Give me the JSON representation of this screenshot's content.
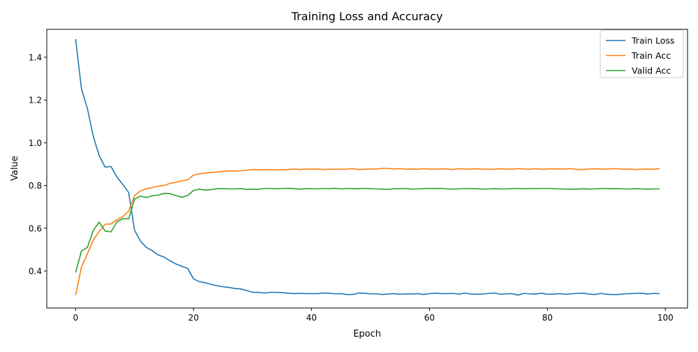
{
  "chart_data": {
    "type": "line",
    "title": "Training Loss and Accuracy",
    "xlabel": "Epoch",
    "ylabel": "Value",
    "xlim": [
      -5,
      104
    ],
    "ylim": [
      0.25,
      1.53
    ],
    "xticks": [
      0,
      20,
      40,
      60,
      80,
      100
    ],
    "xtick_labels": [
      "0",
      "20",
      "40",
      "60",
      "80",
      "100"
    ],
    "yticks": [
      0.4,
      0.6,
      0.8,
      1.0,
      1.2,
      1.4
    ],
    "ytick_labels": [
      "0.4",
      "0.6",
      "0.8",
      "1.0",
      "1.2",
      "1.4"
    ],
    "grid": false,
    "legend_position": "top-right",
    "series": [
      {
        "name": "Train Loss",
        "color": "#1f77b4",
        "values": [
          1.485,
          1.252,
          1.16,
          1.03,
          0.94,
          0.886,
          0.889,
          0.84,
          0.805,
          0.767,
          0.59,
          0.54,
          0.51,
          0.495,
          0.475,
          0.465,
          0.448,
          0.433,
          0.422,
          0.412,
          0.363,
          0.35,
          0.345,
          0.337,
          0.331,
          0.326,
          0.323,
          0.318,
          0.316,
          0.309,
          0.3,
          0.3,
          0.297,
          0.3,
          0.3,
          0.299,
          0.296,
          0.294,
          0.295,
          0.294,
          0.294,
          0.294,
          0.297,
          0.296,
          0.293,
          0.294,
          0.29,
          0.29,
          0.297,
          0.296,
          0.293,
          0.293,
          0.29,
          0.292,
          0.294,
          0.291,
          0.293,
          0.292,
          0.294,
          0.29,
          0.294,
          0.296,
          0.294,
          0.294,
          0.295,
          0.291,
          0.297,
          0.292,
          0.291,
          0.292,
          0.295,
          0.297,
          0.291,
          0.293,
          0.294,
          0.287,
          0.295,
          0.293,
          0.292,
          0.296,
          0.291,
          0.292,
          0.294,
          0.291,
          0.293,
          0.295,
          0.296,
          0.292,
          0.29,
          0.295,
          0.291,
          0.29,
          0.29,
          0.293,
          0.294,
          0.295,
          0.296,
          0.292,
          0.295,
          0.294
        ]
      },
      {
        "name": "Train Acc",
        "color": "#ff7f0e",
        "values": [
          0.287,
          0.419,
          0.48,
          0.545,
          0.585,
          0.619,
          0.62,
          0.64,
          0.655,
          0.68,
          0.753,
          0.775,
          0.785,
          0.79,
          0.797,
          0.8,
          0.81,
          0.815,
          0.822,
          0.826,
          0.849,
          0.855,
          0.858,
          0.861,
          0.863,
          0.866,
          0.868,
          0.868,
          0.869,
          0.871,
          0.875,
          0.874,
          0.874,
          0.875,
          0.873,
          0.874,
          0.875,
          0.877,
          0.875,
          0.877,
          0.876,
          0.877,
          0.875,
          0.876,
          0.876,
          0.876,
          0.877,
          0.879,
          0.875,
          0.876,
          0.877,
          0.877,
          0.88,
          0.88,
          0.877,
          0.879,
          0.876,
          0.877,
          0.876,
          0.878,
          0.877,
          0.876,
          0.878,
          0.877,
          0.875,
          0.879,
          0.876,
          0.877,
          0.878,
          0.877,
          0.876,
          0.876,
          0.878,
          0.877,
          0.876,
          0.879,
          0.877,
          0.876,
          0.878,
          0.876,
          0.877,
          0.878,
          0.877,
          0.877,
          0.879,
          0.875,
          0.875,
          0.877,
          0.878,
          0.877,
          0.876,
          0.879,
          0.878,
          0.876,
          0.877,
          0.875,
          0.876,
          0.877,
          0.876,
          0.879
        ]
      },
      {
        "name": "Valid Acc",
        "color": "#2ca02c",
        "values": [
          0.393,
          0.494,
          0.51,
          0.59,
          0.629,
          0.587,
          0.583,
          0.63,
          0.645,
          0.644,
          0.737,
          0.75,
          0.744,
          0.752,
          0.755,
          0.763,
          0.762,
          0.753,
          0.745,
          0.753,
          0.777,
          0.783,
          0.778,
          0.781,
          0.785,
          0.785,
          0.784,
          0.784,
          0.785,
          0.782,
          0.783,
          0.782,
          0.786,
          0.786,
          0.785,
          0.786,
          0.787,
          0.785,
          0.783,
          0.785,
          0.785,
          0.784,
          0.786,
          0.785,
          0.787,
          0.784,
          0.786,
          0.785,
          0.785,
          0.786,
          0.785,
          0.784,
          0.783,
          0.782,
          0.785,
          0.785,
          0.786,
          0.783,
          0.784,
          0.785,
          0.786,
          0.785,
          0.787,
          0.784,
          0.783,
          0.784,
          0.786,
          0.785,
          0.785,
          0.783,
          0.784,
          0.785,
          0.784,
          0.784,
          0.785,
          0.786,
          0.785,
          0.786,
          0.785,
          0.786,
          0.786,
          0.785,
          0.784,
          0.783,
          0.783,
          0.783,
          0.785,
          0.783,
          0.784,
          0.785,
          0.786,
          0.785,
          0.785,
          0.784,
          0.784,
          0.785,
          0.784,
          0.783,
          0.784,
          0.784
        ]
      }
    ]
  }
}
